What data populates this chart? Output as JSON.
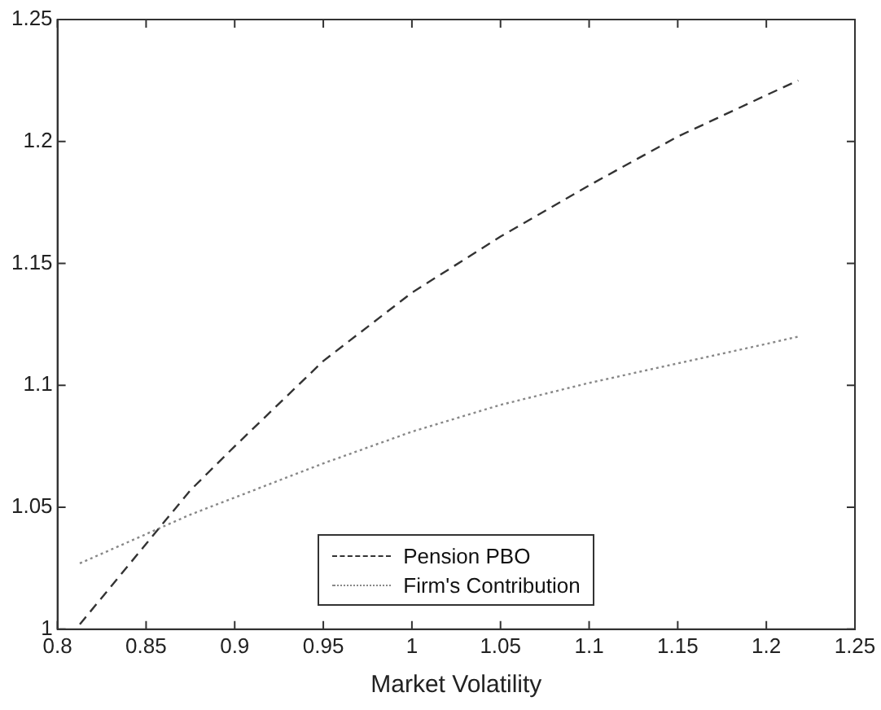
{
  "chart_data": {
    "type": "line",
    "xlabel": "Market Volatility",
    "xlim": [
      0.8,
      1.25
    ],
    "xticks": [
      0.8,
      0.85,
      0.9,
      0.95,
      1,
      1.05,
      1.1,
      1.15,
      1.2,
      1.25
    ],
    "ylim": [
      1,
      1.25
    ],
    "yticks": [
      1,
      1.05,
      1.1,
      1.15,
      1.2,
      1.25
    ],
    "grid": false,
    "legend": "bottom",
    "marker": "none",
    "x": [
      0.8126,
      0.85,
      0.875,
      0.9,
      0.95,
      1,
      1.05,
      1.1,
      1.15,
      1.2,
      1.218
    ],
    "series": [
      {
        "name": "Pension PBO",
        "color": "#333333",
        "line_style": "dashed",
        "values": [
          1.002,
          1.035,
          1.057,
          1.075,
          1.11,
          1.138,
          1.161,
          1.182,
          1.202,
          1.219,
          1.225
        ]
      },
      {
        "name": "Firm's Contribution",
        "color": "#888888",
        "line_style": "dotted",
        "values": [
          1.027,
          1.039,
          1.047,
          1.054,
          1.068,
          1.081,
          1.092,
          1.101,
          1.109,
          1.117,
          1.12
        ]
      }
    ]
  }
}
